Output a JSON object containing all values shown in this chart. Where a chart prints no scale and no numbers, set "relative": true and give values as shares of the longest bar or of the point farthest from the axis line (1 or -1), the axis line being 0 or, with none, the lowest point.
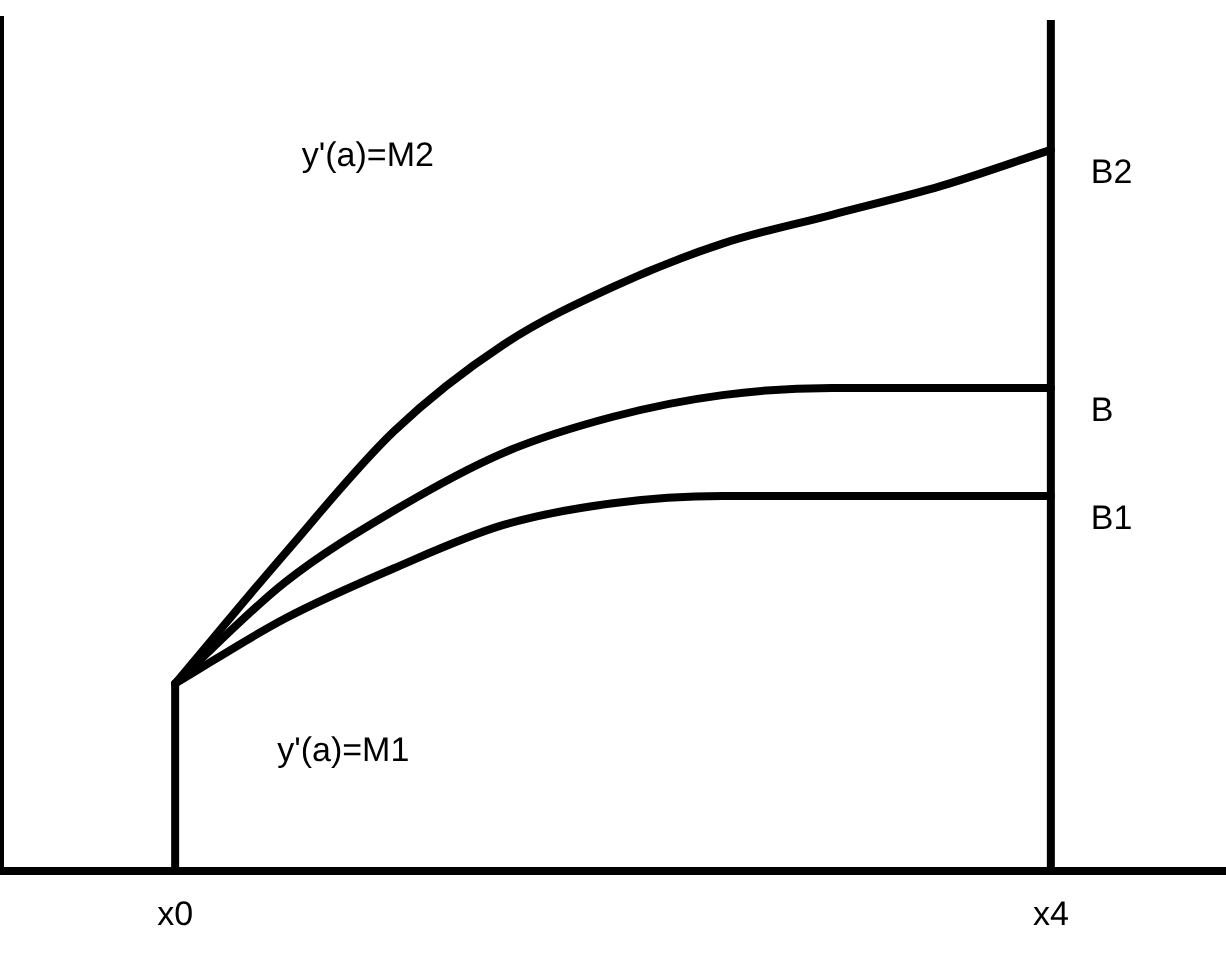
{
  "chart_data": {
    "type": "line",
    "relative": true,
    "grid": false,
    "legend": false,
    "marker": "none",
    "line_style": "solid",
    "categories": [
      "x0",
      null,
      null,
      null,
      null,
      null,
      null,
      null,
      "x4"
    ],
    "series": [
      {
        "name": "B2",
        "color": "#000000",
        "values": [
          0.26,
          0.44,
          0.61,
          0.73,
          0.81,
          0.87,
          0.91,
          0.95,
          1
        ]
      },
      {
        "name": "B",
        "color": "#000000",
        "values": [
          0.26,
          0.4,
          0.5,
          0.58,
          0.63,
          0.66,
          0.67,
          0.67,
          0.67
        ]
      },
      {
        "name": "B1",
        "color": "#000000",
        "values": [
          0.26,
          0.35,
          0.42,
          0.48,
          0.51,
          0.52,
          0.52,
          0.52,
          0.52
        ]
      },
      {
        "color": "#000000",
        "x": [
          "x0",
          "x0"
        ],
        "values": [
          0,
          0.26
        ]
      }
    ],
    "ref_lines": [
      {
        "axis": "x",
        "value": "x4",
        "color": "#000000"
      }
    ],
    "annotations": [
      "y'(a)=M2",
      "y'(a)=M1"
    ]
  }
}
